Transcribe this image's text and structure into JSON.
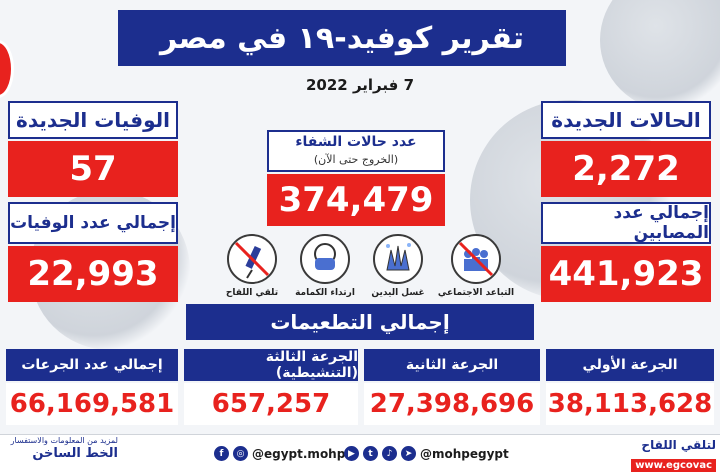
{
  "title": "تقرير كوفيد-١٩ في مصر",
  "date": "7 فبراير 2022",
  "new_cases": {
    "label": "الحالات الجديدة",
    "value": "2,272"
  },
  "total_cases": {
    "label": "إجمالي عدد المصابين",
    "value": "441,923"
  },
  "new_deaths": {
    "label": "الوفيات الجديدة",
    "value": "57"
  },
  "total_deaths": {
    "label": "إجمالي عدد الوفيات",
    "value": "22,993"
  },
  "recoveries": {
    "label": "عدد حالات الشفاء",
    "sublabel": "(الخروج حتى الآن)",
    "value": "374,479"
  },
  "precautions": [
    {
      "label": "تلقي اللقاح",
      "icon": "syringe-icon"
    },
    {
      "label": "ارتداء الكمامة",
      "icon": "mask-icon"
    },
    {
      "label": "غسل اليدين",
      "icon": "hand-wash-icon"
    },
    {
      "label": "التباعد الاجتماعي",
      "icon": "no-crowd-icon"
    }
  ],
  "vaccinations": {
    "title": "إجمالي التطعيمات",
    "first_dose": {
      "label": "الجرعة الأولي",
      "value": "38,113,628"
    },
    "second_dose": {
      "label": "الجرعة الثانية",
      "value": "27,398,696"
    },
    "third_dose": {
      "label": "الجرعة الثالثة (التنشيطية)",
      "value": "657,257"
    },
    "total": {
      "label": "إجمالي عدد الجرعات",
      "value": "66,169,581"
    }
  },
  "footer": {
    "info_small": "لمزيد من المعلومات والاستفسار",
    "hotline": "الخط الساخن",
    "social_handle_1": "@egypt.mohp",
    "social_handle_2": "@mohpegypt",
    "vaccine_cta": "لتلقي اللقاح",
    "vaccine_url": "www.egcovac"
  },
  "colors": {
    "primary": "#1c2e8e",
    "accent": "#e8221e"
  }
}
